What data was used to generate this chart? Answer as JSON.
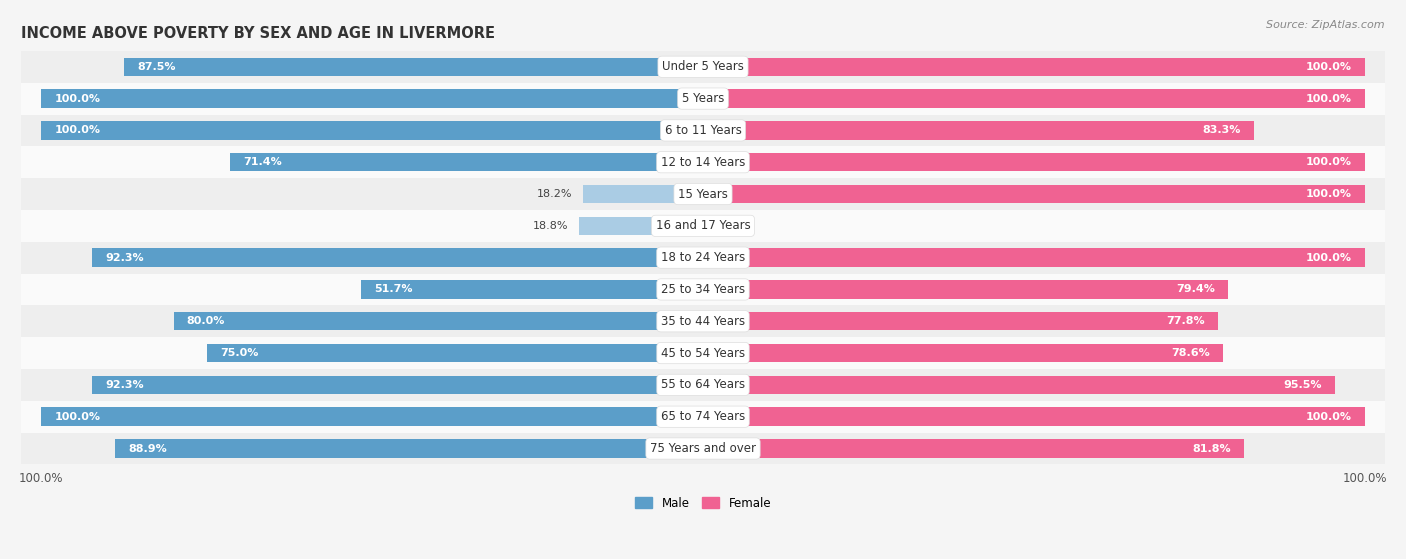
{
  "title": "INCOME ABOVE POVERTY BY SEX AND AGE IN LIVERMORE",
  "source": "Source: ZipAtlas.com",
  "categories": [
    "Under 5 Years",
    "5 Years",
    "6 to 11 Years",
    "12 to 14 Years",
    "15 Years",
    "16 and 17 Years",
    "18 to 24 Years",
    "25 to 34 Years",
    "35 to 44 Years",
    "45 to 54 Years",
    "55 to 64 Years",
    "65 to 74 Years",
    "75 Years and over"
  ],
  "male_values": [
    87.5,
    100.0,
    100.0,
    71.4,
    18.2,
    18.8,
    92.3,
    51.7,
    80.0,
    75.0,
    92.3,
    100.0,
    88.9
  ],
  "female_values": [
    100.0,
    100.0,
    83.3,
    100.0,
    100.0,
    0.0,
    100.0,
    79.4,
    77.8,
    78.6,
    95.5,
    100.0,
    81.8
  ],
  "male_color_dark": "#5b9ec9",
  "male_color_light": "#aacce4",
  "female_color_dark": "#f06292",
  "female_color_light": "#f8bbd0",
  "bar_height": 0.58,
  "background_color": "#f5f5f5",
  "row_even_color": "#eeeeee",
  "row_odd_color": "#fafafa",
  "legend_male": "Male",
  "legend_female": "Female",
  "title_fontsize": 10.5,
  "label_fontsize": 8.5,
  "source_fontsize": 8,
  "value_fontsize": 8,
  "male_threshold": 50,
  "female_threshold": 50
}
